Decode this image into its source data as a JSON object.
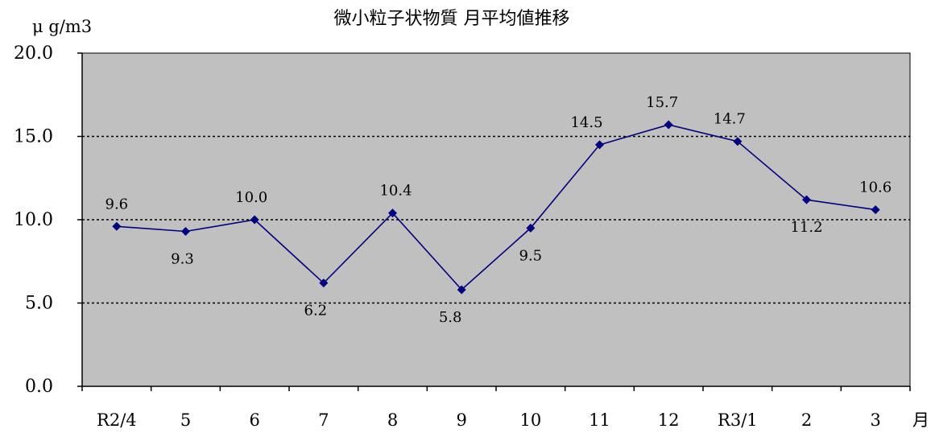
{
  "chart_data": {
    "type": "line",
    "title": "微小粒子状物質 月平均値推移",
    "ylabel": "μ g/m3",
    "xlabel": "月",
    "ylim": [
      0,
      20
    ],
    "yticks": [
      "0.0",
      "5.0",
      "10.0",
      "15.0",
      "20.0"
    ],
    "grid": "horizontal dotted at 5.0, 10.0, 15.0",
    "plot_background": "#C0C0C0",
    "series_color": "#000080",
    "categories": [
      "R2/4",
      "5",
      "6",
      "7",
      "8",
      "9",
      "10",
      "11",
      "12",
      "R3/1",
      "2",
      "3"
    ],
    "series": [
      {
        "values": [
          9.6,
          9.3,
          10.0,
          6.2,
          10.4,
          5.8,
          9.5,
          14.5,
          15.7,
          14.7,
          11.2,
          10.6
        ],
        "labels": [
          "9.6",
          "9.3",
          "10.0",
          "6.2",
          "10.4",
          "5.8",
          "9.5",
          "14.5",
          "15.7",
          "14.7",
          "11.2",
          "10.6"
        ]
      }
    ]
  }
}
